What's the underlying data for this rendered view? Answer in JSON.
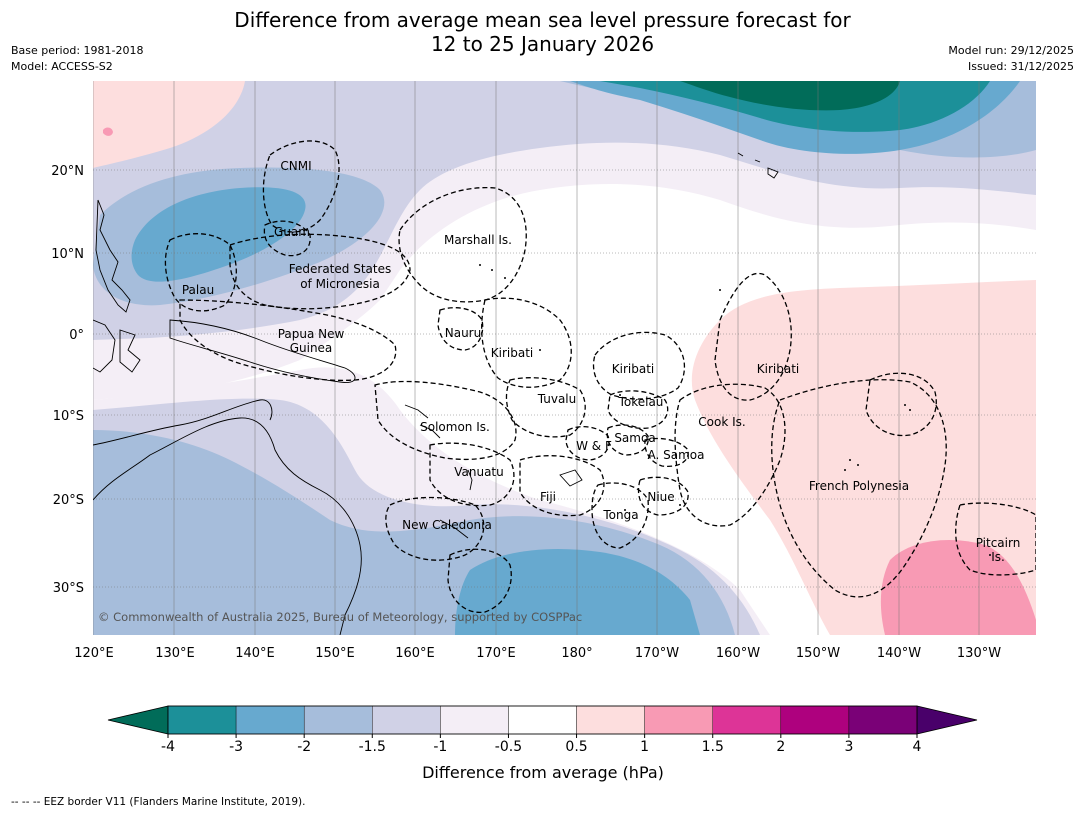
{
  "title": {
    "line1": "Difference from average mean sea level pressure forecast for",
    "line2": "12 to 25 January 2026"
  },
  "meta": {
    "base_period": "Base period: 1981-2018",
    "model": "Model: ACCESS-S2",
    "model_run": "Model run: 29/12/2025",
    "issued": "Issued: 31/12/2025"
  },
  "map": {
    "lat_labels": [
      "20°N",
      "10°N",
      "0°",
      "10°S",
      "20°S",
      "30°S"
    ],
    "lon_labels": [
      "120°E",
      "130°E",
      "140°E",
      "150°E",
      "160°E",
      "170°E",
      "180°",
      "170°W",
      "160°W",
      "150°W",
      "140°W",
      "130°W"
    ],
    "regions": {
      "cnmi": "CNMI",
      "guam": "Guam",
      "palau": "Palau",
      "fsm_line1": "Federated States",
      "fsm_line2": "of Micronesia",
      "marshall": "Marshall Is.",
      "nauru": "Nauru",
      "png_line1": "Papua New",
      "png_line2": "Guinea",
      "kiribati_west": "Kiribati",
      "kiribati_central": "Kiribati",
      "kiribati_east": "Kiribati",
      "tuvalu": "Tuvalu",
      "tokelau": "Tokelau",
      "solomon": "Solomon Is.",
      "cook": "Cook Is.",
      "samoa": "Samoa",
      "wf": "W & F",
      "amsamoa": "A. Samoa",
      "vanuatu": "Vanuatu",
      "fiji": "Fiji",
      "niue": "Niue",
      "tonga": "Tonga",
      "french_polynesia": "French Polynesia",
      "new_caledonia": "New Caledonia",
      "pitcairn_line1": "Pitcairn",
      "pitcairn_line2": "Is."
    },
    "copyright": "© Commonwealth of Australia 2025, Bureau of Meteorology, supported by COSPPac"
  },
  "colorbar": {
    "ticks": [
      "-4",
      "-3",
      "-2",
      "-1.5",
      "-1",
      "-0.5",
      "0.5",
      "1",
      "1.5",
      "2",
      "3",
      "4"
    ],
    "colors": [
      "#1c9099",
      "#67a9cf",
      "#a6bddb",
      "#d0d1e6",
      "#f4eef6",
      "#ffffff",
      "#fddede",
      "#f89ab4",
      "#dd3497",
      "#ae017e",
      "#7a0177"
    ],
    "extend_low_color": "#016c59",
    "extend_high_color": "#49006a",
    "title": "Difference from average (hPa)"
  },
  "footnote": "--  --  -- EEZ border V11 (Flanders Marine Institute, 2019)."
}
